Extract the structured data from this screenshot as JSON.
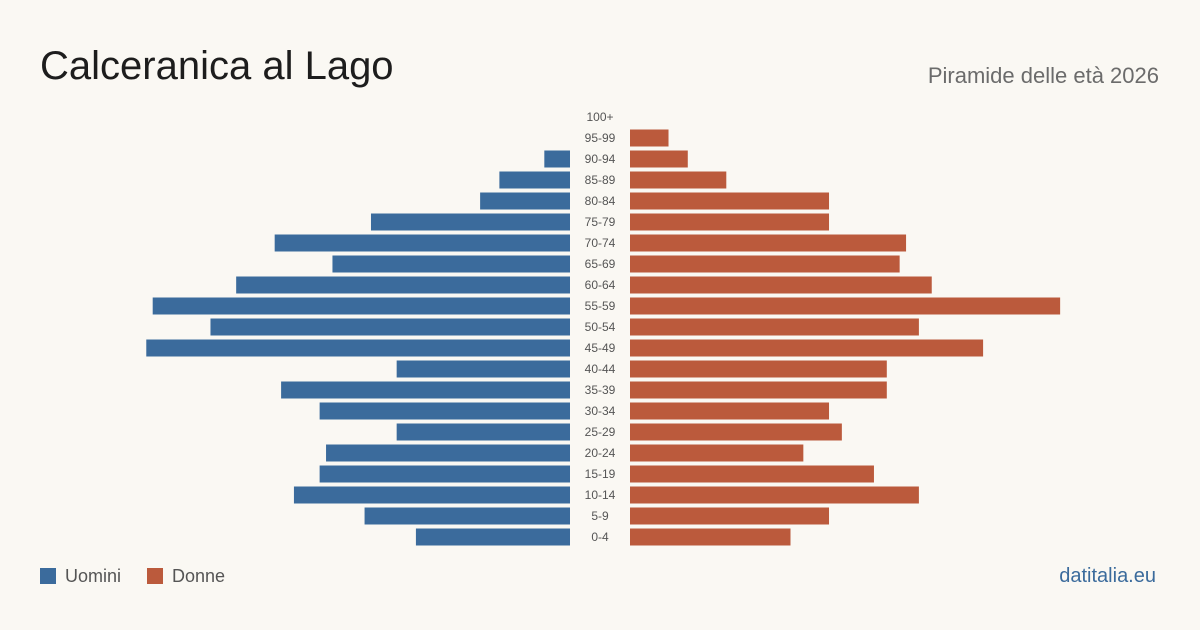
{
  "header": {
    "title": "Calceranica al Lago",
    "subtitle": "Piramide delle età 2026"
  },
  "legend": {
    "men_label": "Uomini",
    "women_label": "Donne"
  },
  "brand": {
    "text": "datitalia.eu"
  },
  "colors": {
    "men": "#3b6b9c",
    "women": "#bb5a3c",
    "background": "#faf8f3",
    "brand": "#3b6b9c"
  },
  "chart_data": {
    "type": "bar",
    "orientation": "horizontal-population-pyramid",
    "categories": [
      "100+",
      "95-99",
      "90-94",
      "85-89",
      "80-84",
      "75-79",
      "70-74",
      "65-69",
      "60-64",
      "55-59",
      "50-54",
      "45-49",
      "40-44",
      "35-39",
      "30-34",
      "25-29",
      "20-24",
      "15-19",
      "10-14",
      "5-9",
      "0-4"
    ],
    "series": [
      {
        "name": "Uomini",
        "side": "left",
        "values": [
          0,
          0,
          4,
          11,
          14,
          31,
          46,
          37,
          52,
          65,
          56,
          66,
          27,
          45,
          39,
          27,
          38,
          39,
          43,
          32,
          24
        ]
      },
      {
        "name": "Donne",
        "side": "right",
        "values": [
          0,
          6,
          9,
          15,
          31,
          31,
          43,
          42,
          47,
          67,
          45,
          55,
          40,
          40,
          31,
          33,
          27,
          38,
          45,
          31,
          25
        ]
      }
    ],
    "xlim": [
      0,
      70
    ],
    "grid": false,
    "legend_position": "bottom-left"
  }
}
